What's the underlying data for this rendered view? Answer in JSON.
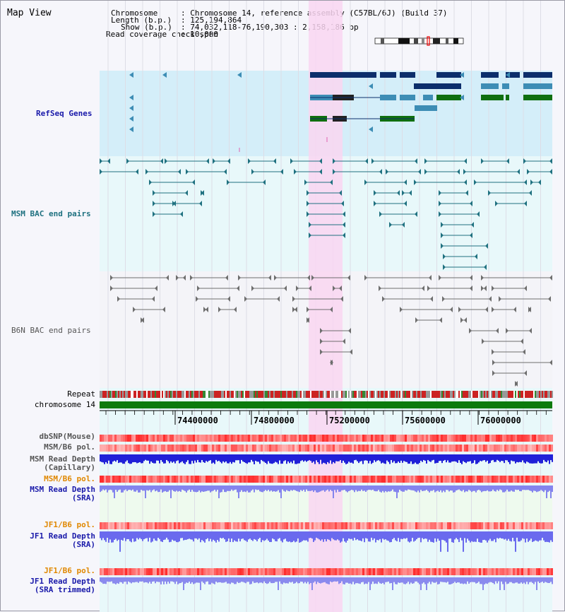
{
  "view_title": "Map View",
  "header": {
    "chromosome_label": "Chromosome",
    "chromosome_value": ": Chromosome 14, reference assembly (C57BL/6J) (Build 37)",
    "length_label": "Length (b.p.)",
    "length_value": ": 125,194,864",
    "show_label": "Show (b.p.)",
    "show_value": ": 74,032,118-76,190,303 : 2,158,186 bp",
    "coverage_label": "Read coverage check span",
    "coverage_value": ": 10,000"
  },
  "tracks": {
    "refseq": "RefSeq Genes",
    "msm_bac": "MSM BAC end pairs",
    "b6n_bac": "B6N BAC end pairs",
    "repeat": "Repeat",
    "chromosome": "chromosome 14",
    "dbsnp": "dbSNP(Mouse)",
    "msm_b6_pol": "MSM/B6 pol.",
    "msm_depth_cap_1": "MSM Read Depth",
    "msm_depth_cap_2": "(Capillary)",
    "msm_b6_pol_sra": "MSM/B6 pol.",
    "msm_depth_sra_1": "MSM Read Depth",
    "msm_depth_sra_2": "(SRA)",
    "jf1_b6_pol": "JF1/B6 pol.",
    "jf1_depth_1": "JF1 Read Depth",
    "jf1_depth_2": "(SRA)",
    "jf1_b6_pol_trim": "JF1/B6 pol.",
    "jf1_trim_1": "JF1 Read Depth",
    "jf1_trim_2": "(SRA trimmed)"
  },
  "axis_ticks": [
    "74400000",
    "74800000",
    "75200000",
    "75600000",
    "76000000"
  ],
  "colors": {
    "refseq_bg": "#d4eef9",
    "bac_bg": "#e8f8fa",
    "highlight": "#f9d6f1",
    "chromosome_bar": "#0d7a0d",
    "gene_dark": "#0c2e6b",
    "gene_mid": "#3d8db5",
    "gene_green": "#0f6f0f",
    "msm_pair": "#1f7180",
    "b6n_pair": "#6e6e6e"
  }
}
